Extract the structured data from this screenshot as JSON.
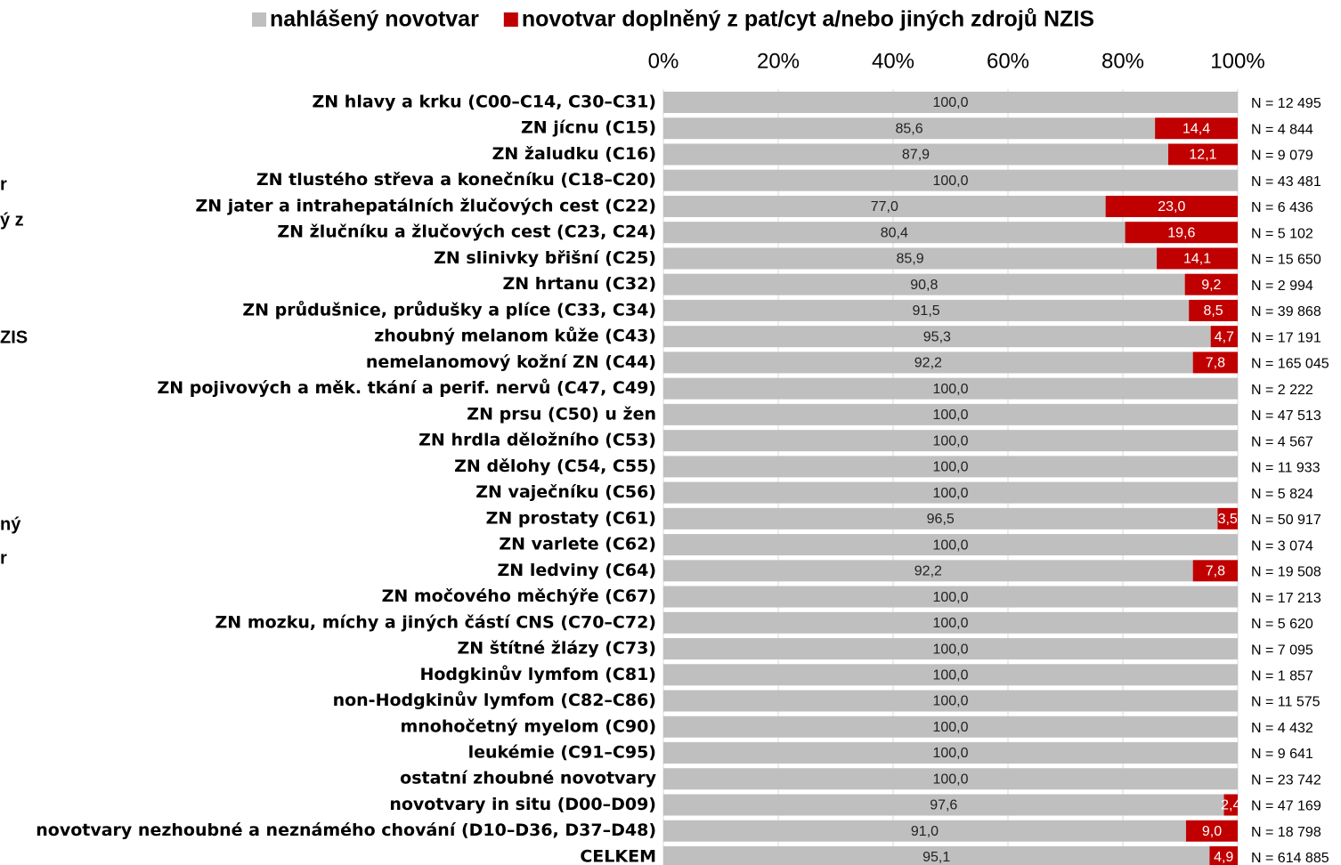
{
  "chart_data": {
    "type": "stacked_barh",
    "categories": [
      "ZN hlavy a krku (C00–C14, C30–C31)",
      "ZN jícnu (C15)",
      "ZN žaludku (C16)",
      "ZN tlustého střeva a konečníku (C18–C20)",
      "ZN jater a intrahepatálních žlučových cest (C22)",
      "ZN žlučníku a žlučových cest (C23, C24)",
      "ZN slinivky břišní (C25)",
      "ZN hrtanu (C32)",
      "ZN průdušnice, průdušky a plíce (C33, C34)",
      "zhoubný melanom kůže (C43)",
      "nemelanomový kožní ZN (C44)",
      "ZN pojivových a měk. tkání a perif. nervů (C47, C49)",
      "ZN prsu (C50) u žen",
      "ZN hrdla děložního (C53)",
      "ZN dělohy (C54, C55)",
      "ZN vaječníku (C56)",
      "ZN prostaty (C61)",
      "ZN varlete (C62)",
      "ZN ledviny (C64)",
      "ZN močového měchýře (C67)",
      "ZN mozku, míchy a jiných částí CNS (C70–C72)",
      "ZN štítné žlázy (C73)",
      "Hodgkinův lymfom (C81)",
      "non-Hodgkinův lymfom (C82–C86)",
      "mnohočetný myelom (C90)",
      "leukémie (C91–C95)",
      "ostatní zhoubné novotvary",
      "novotvary in situ (D00–D09)",
      "novotvary nezhoubné a neznámého chování (D10–D36, D37–D48)",
      "CELKEM"
    ],
    "series": [
      {
        "name": "nahlášený novotvar",
        "color": "#bfbfbf",
        "label_color": "#222222",
        "values": [
          100,
          85.6,
          87.9,
          100,
          77.0,
          80.4,
          85.9,
          90.8,
          91.5,
          95.3,
          92.2,
          100,
          100,
          100,
          100,
          100,
          96.5,
          100,
          92.2,
          100,
          100,
          100,
          100,
          100,
          100,
          100,
          100,
          97.6,
          91.0,
          95.1
        ],
        "value_labels": [
          "100,0",
          "85,6",
          "87,9",
          "100,0",
          "77,0",
          "80,4",
          "85,9",
          "90,8",
          "91,5",
          "95,3",
          "92,2",
          "100,0",
          "100,0",
          "100,0",
          "100,0",
          "100,0",
          "96,5",
          "100,0",
          "92,2",
          "100,0",
          "100,0",
          "100,0",
          "100,0",
          "100,0",
          "100,0",
          "100,0",
          "100,0",
          "97,6",
          "91,0",
          "95,1"
        ]
      },
      {
        "name": "novotvar doplněný z pat/cyt a/nebo jiných zdrojů NZIS",
        "color": "#c00000",
        "label_color": "#ffffff",
        "values": [
          0,
          14.4,
          12.1,
          0,
          23.0,
          19.6,
          14.1,
          9.2,
          8.5,
          4.7,
          7.8,
          0,
          0,
          0,
          0,
          0,
          3.5,
          0,
          7.8,
          0,
          0,
          0,
          0,
          0,
          0,
          0,
          0,
          2.4,
          9.0,
          4.9
        ],
        "value_labels": [
          null,
          "14,4",
          "12,1",
          null,
          "23,0",
          "19,6",
          "14,1",
          "9,2",
          "8,5",
          "4,7",
          "7,8",
          null,
          null,
          null,
          null,
          null,
          "3,5",
          null,
          "7,8",
          null,
          null,
          null,
          null,
          null,
          null,
          null,
          null,
          "2,4",
          "9,0",
          "4,9"
        ]
      }
    ],
    "n_labels": [
      "N = 12 495",
      "N = 4 844",
      "N = 9 079",
      "N = 43 481",
      "N = 6 436",
      "N = 5 102",
      "N = 15 650",
      "N = 2 994",
      "N = 39 868",
      "N = 17 191",
      "N = 165 045",
      "N = 2 222",
      "N = 47 513",
      "N = 4 567",
      "N = 11 933",
      "N = 5 824",
      "N = 50 917",
      "N = 3 074",
      "N = 19 508",
      "N = 17 213",
      "N = 5 620",
      "N = 7 095",
      "N = 1 857",
      "N = 11 575",
      "N = 4 432",
      "N = 9 641",
      "N = 23 742",
      "N = 47 169",
      "N = 18 798",
      "N = 614 885"
    ],
    "side_text": [
      "r",
      "ý z",
      "ZIS",
      "ný",
      "r"
    ],
    "xlim": [
      0,
      100
    ],
    "xticks": [
      {
        "value": 0,
        "label": "0%"
      },
      {
        "value": 20,
        "label": "20%"
      },
      {
        "value": 40,
        "label": "40%"
      },
      {
        "value": 60,
        "label": "60%"
      },
      {
        "value": 80,
        "label": "80%"
      },
      {
        "value": 100,
        "label": "100%"
      }
    ],
    "grid": true
  }
}
